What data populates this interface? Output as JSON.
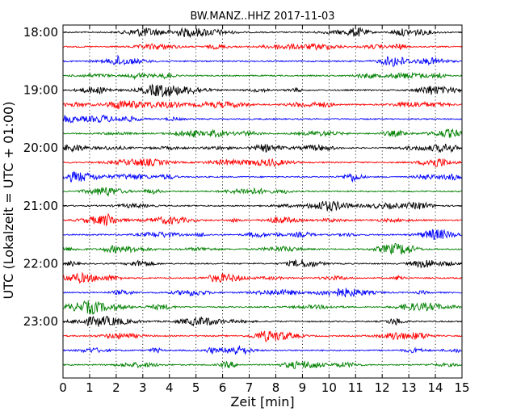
{
  "chart_data": {
    "type": "line",
    "title": "BW.MANZ..HHZ 2017-11-03",
    "xlabel": "Zeit  [min]",
    "ylabel": "UTC (Lokalzeit = UTC + 01:00)",
    "xlim": [
      0,
      15
    ],
    "x_ticks": [
      "0",
      "1",
      "2",
      "3",
      "4",
      "5",
      "6",
      "7",
      "8",
      "9",
      "10",
      "11",
      "12",
      "13",
      "14",
      "15"
    ],
    "y_tick_labels": [
      "18:00",
      "19:00",
      "20:00",
      "21:00",
      "22:00",
      "23:00"
    ],
    "rows_per_hour": 4,
    "row_count": 24,
    "vertical_grid": true,
    "grid_style": "dotted",
    "series_colors": [
      "#000000",
      "#ff0000",
      "#0000ff",
      "#008000"
    ]
  }
}
